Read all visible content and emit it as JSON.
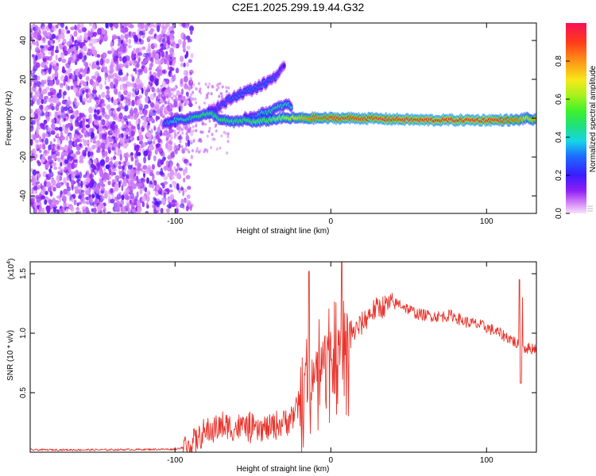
{
  "title": "C2E1.2025.299.19.44.G32",
  "colors": {
    "snr_line": "#e8332b",
    "noise_dot": "#7b16f0",
    "track_core": "#e0134c",
    "axis": "#000000"
  },
  "colorbar": {
    "label": "Normalized spectral amplitude",
    "ticks": [
      "0.0",
      "0.2",
      "0.4",
      "0.6",
      "0.8"
    ],
    "tick_values": [
      0.0,
      0.2,
      0.4,
      0.6,
      0.8
    ],
    "range": [
      0,
      1
    ]
  },
  "chart_data": [
    {
      "type": "heatmap",
      "title": "C2E1.2025.299.19.44.G32",
      "xlabel": "Height of straight line (km)",
      "ylabel": "Frequency (Hz)",
      "xlim": [
        -193,
        132
      ],
      "ylim": [
        -49,
        49
      ],
      "x_tick_labels": [
        "-100",
        "0",
        "100"
      ],
      "x_tick_values": [
        -100,
        0,
        100
      ],
      "y_tick_labels": [
        "-40",
        "-20",
        "0",
        "20",
        "40"
      ],
      "y_tick_values": [
        -40,
        -20,
        0,
        20,
        40
      ],
      "grid": false,
      "noise_region_x": [
        -193,
        -93
      ],
      "main_track": {
        "x": [
          -107,
          -100,
          -90,
          -82,
          -76,
          -70,
          -62,
          -55,
          -48,
          -40,
          -33,
          -26,
          -20,
          -10,
          0,
          20,
          60,
          100,
          120,
          125,
          132
        ],
        "y": [
          -3,
          -1,
          0,
          2,
          2,
          -1,
          -2,
          -1,
          -2,
          -1,
          0,
          0,
          0,
          0,
          0,
          0,
          -1,
          -1,
          -1,
          0,
          -1
        ],
        "amplitude": [
          0.3,
          0.4,
          0.45,
          0.5,
          0.5,
          0.5,
          0.5,
          0.5,
          0.55,
          0.55,
          0.6,
          0.65,
          0.75,
          0.85,
          0.9,
          0.92,
          0.95,
          0.95,
          0.85,
          0.7,
          0.8
        ]
      },
      "upper_branch": {
        "x": [
          -78,
          -70,
          -60,
          -50,
          -42,
          -35,
          -30
        ],
        "y": [
          4,
          7,
          12,
          15,
          18,
          22,
          26
        ],
        "amplitude": [
          0.2,
          0.25,
          0.3,
          0.3,
          0.3,
          0.25,
          0.2
        ]
      },
      "lower_branch": {
        "x": [
          -55,
          -45,
          -38,
          -32,
          -28,
          -25
        ],
        "y": [
          0,
          2,
          4,
          6,
          7,
          6
        ],
        "amplitude": [
          0.3,
          0.4,
          0.45,
          0.45,
          0.4,
          0.35
        ]
      }
    },
    {
      "type": "line",
      "xlabel": "Height of straight line (km)",
      "ylabel": "SNR (10 * v/v)",
      "y_multiplier": "(x10",
      "y_multiplier_exp": "4",
      "y_multiplier_close": ")",
      "xlim": [
        -193,
        132
      ],
      "ylim": [
        0,
        1.6
      ],
      "x_tick_labels": [
        "-100",
        "0",
        "100"
      ],
      "x_tick_values": [
        -100,
        0,
        100
      ],
      "y_tick_labels": [
        "0.5",
        "1.0",
        "1.5"
      ],
      "y_tick_values": [
        0.5,
        1.0,
        1.5
      ],
      "grid": false,
      "series": [
        {
          "name": "SNR",
          "x": [
            -193,
            -150,
            -100,
            -92,
            -85,
            -78,
            -70,
            -62,
            -55,
            -48,
            -40,
            -32,
            -25,
            -20,
            -15,
            -12,
            -8,
            -4,
            0,
            4,
            8,
            12,
            16,
            20,
            26,
            32,
            38,
            44,
            50,
            56,
            62,
            70,
            78,
            85,
            92,
            100,
            108,
            116,
            120,
            124,
            128,
            132
          ],
          "y": [
            0.02,
            0.02,
            0.025,
            0.05,
            0.12,
            0.18,
            0.22,
            0.2,
            0.22,
            0.18,
            0.2,
            0.24,
            0.3,
            0.4,
            0.55,
            0.65,
            0.78,
            0.8,
            0.85,
            0.9,
            0.95,
            0.97,
            1.02,
            1.08,
            1.18,
            1.22,
            1.24,
            1.25,
            1.2,
            1.16,
            1.15,
            1.14,
            1.15,
            1.1,
            1.08,
            1.05,
            1.0,
            0.95,
            0.9,
            0.88,
            0.87,
            0.88
          ]
        }
      ],
      "peaks": {
        "x": [
          -14,
          7,
          121,
          123
        ],
        "y": [
          1.52,
          1.6,
          1.45,
          1.3
        ]
      }
    }
  ]
}
